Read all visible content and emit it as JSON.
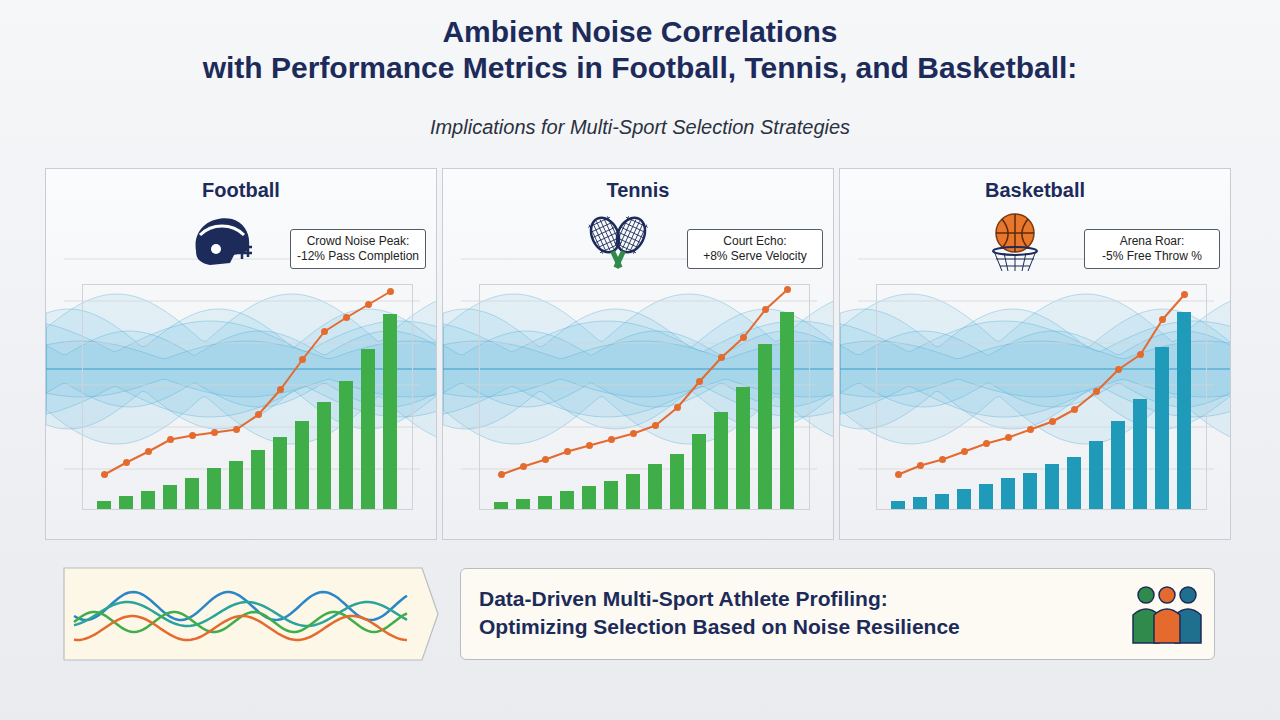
{
  "title": [
    "Ambient Noise Correlations",
    "with Performance Metrics in Football, Tennis, and Basketball:"
  ],
  "subtitle": "Implications for Multi-Sport Selection Strategies",
  "footer": "Data-Driven Multi-Sport Athlete Profiling: Optimizing Selection Based on Noise Resilience",
  "chart_data": [
    {
      "type": "bar",
      "title": "Football",
      "categories": [
        null,
        null,
        null,
        null,
        null,
        null,
        null,
        null,
        null,
        null,
        null,
        null,
        null,
        null
      ],
      "series": [
        {
          "type": "bar",
          "color": "#3fae49",
          "values": [
            8,
            13,
            18,
            24,
            31,
            41,
            48,
            59,
            72,
            88,
            107,
            128,
            160,
            195
          ]
        },
        {
          "type": "line",
          "color": "#e46a2e",
          "marker": "circle",
          "values": [
            35,
            47,
            58,
            70,
            74,
            77,
            80,
            95,
            120,
            150,
            178,
            192,
            205,
            218
          ]
        }
      ],
      "ylim": [
        0,
        225
      ],
      "tick_labels": false,
      "annotations": [
        "Crowd Noise Peak: -12% Pass Completion"
      ]
    },
    {
      "type": "bar",
      "title": "Tennis",
      "categories": [
        null,
        null,
        null,
        null,
        null,
        null,
        null,
        null,
        null,
        null,
        null,
        null,
        null,
        null
      ],
      "series": [
        {
          "type": "bar",
          "color": "#3fae49",
          "values": [
            7,
            10,
            13,
            18,
            23,
            28,
            35,
            45,
            55,
            75,
            97,
            122,
            165,
            197
          ]
        },
        {
          "type": "line",
          "color": "#e46a2e",
          "marker": "circle",
          "values": [
            35,
            43,
            50,
            58,
            64,
            70,
            76,
            84,
            102,
            128,
            152,
            172,
            200,
            220
          ]
        }
      ],
      "ylim": [
        0,
        225
      ],
      "tick_labels": false,
      "annotations": [
        "Court Echo: +8% Serve Velocity"
      ]
    },
    {
      "type": "bar",
      "title": "Basketball",
      "categories": [
        null,
        null,
        null,
        null,
        null,
        null,
        null,
        null,
        null,
        null,
        null,
        null,
        null,
        null
      ],
      "series": [
        {
          "type": "bar",
          "color": "#1f9ab8",
          "values": [
            8,
            12,
            15,
            20,
            25,
            31,
            36,
            45,
            52,
            68,
            88,
            110,
            162,
            197
          ]
        },
        {
          "type": "line",
          "color": "#e46a2e",
          "marker": "circle",
          "values": [
            35,
            44,
            50,
            58,
            66,
            72,
            80,
            88,
            100,
            118,
            140,
            155,
            190,
            215
          ]
        }
      ],
      "ylim": [
        0,
        225
      ],
      "tick_labels": false,
      "annotations": [
        "Arena Roar: -5% Free Throw %"
      ]
    }
  ]
}
